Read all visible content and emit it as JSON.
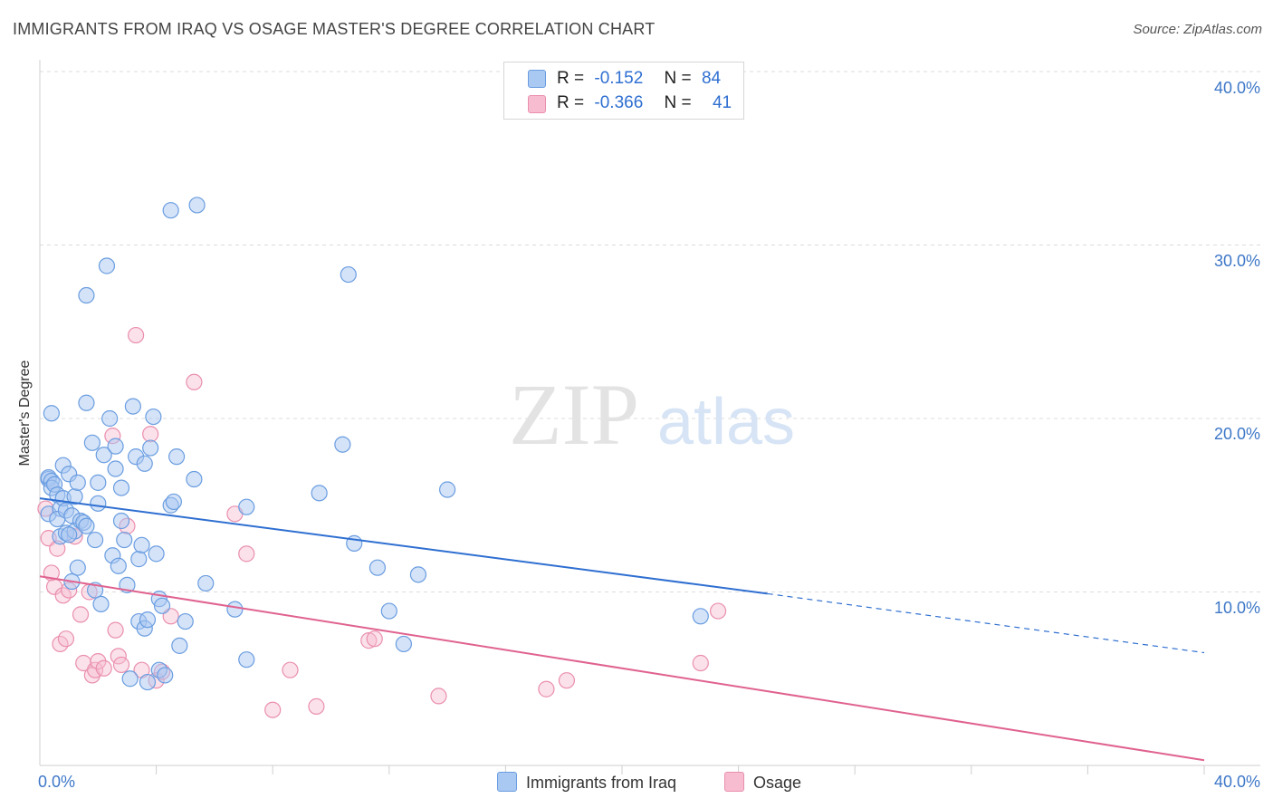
{
  "title": "IMMIGRANTS FROM IRAQ VS OSAGE MASTER'S DEGREE CORRELATION CHART",
  "source": "Source: ZipAtlas.com",
  "watermark": {
    "zip": "ZIP",
    "atlas": "atlas"
  },
  "colors": {
    "iraq_fill": "#a9c8f2",
    "iraq_stroke": "#6a9de0",
    "iraq_line": "#2f6fd1",
    "osage_fill": "#f7bcd0",
    "osage_stroke": "#ea8fae",
    "osage_line": "#e0628f",
    "axis_text": "#3d77c8",
    "grid": "#dcdcdc"
  },
  "legend": {
    "rows": [
      {
        "r_label": "R =",
        "r_value": "-0.152",
        "n_label": "N =",
        "n_value": "84"
      },
      {
        "r_label": "R =",
        "r_value": "-0.366",
        "n_label": "N =",
        "n_value": "41"
      }
    ]
  },
  "bottom_legend": {
    "iraq": "Immigrants from Iraq",
    "osage": "Osage"
  },
  "chart_data": {
    "type": "scatter",
    "title": "IMMIGRANTS FROM IRAQ VS OSAGE MASTER'S DEGREE CORRELATION CHART",
    "xlabel": "",
    "ylabel": "Master's Degree",
    "xlim": [
      0,
      40
    ],
    "ylim": [
      0,
      40
    ],
    "x_tick_labels": [
      "0.0%",
      "40.0%"
    ],
    "y_ticks": [
      10,
      20,
      30,
      40
    ],
    "y_tick_labels": [
      "10.0%",
      "20.0%",
      "30.0%",
      "40.0%"
    ],
    "series": [
      {
        "name": "Immigrants from Iraq",
        "r": -0.152,
        "n": 84,
        "trend": {
          "x0": 0,
          "y0": 15.4,
          "x1": 25,
          "y1": 9.9,
          "dash_x1": 40,
          "dash_y1": 6.5
        },
        "points": [
          [
            0.3,
            16.5
          ],
          [
            0.3,
            16.6
          ],
          [
            0.4,
            16.4
          ],
          [
            0.4,
            16.0
          ],
          [
            0.5,
            16.2
          ],
          [
            0.3,
            14.5
          ],
          [
            0.4,
            20.3
          ],
          [
            0.6,
            15.6
          ],
          [
            0.7,
            14.8
          ],
          [
            0.6,
            14.2
          ],
          [
            0.8,
            15.4
          ],
          [
            0.7,
            13.2
          ],
          [
            0.9,
            13.4
          ],
          [
            0.8,
            17.3
          ],
          [
            0.9,
            14.7
          ],
          [
            1.0,
            16.8
          ],
          [
            1.1,
            14.4
          ],
          [
            1.2,
            15.5
          ],
          [
            1.3,
            16.3
          ],
          [
            1.2,
            13.5
          ],
          [
            1.4,
            14.1
          ],
          [
            1.5,
            14.0
          ],
          [
            1.3,
            11.4
          ],
          [
            1.1,
            10.6
          ],
          [
            1.6,
            20.9
          ],
          [
            1.8,
            18.6
          ],
          [
            1.9,
            13.0
          ],
          [
            2.0,
            15.1
          ],
          [
            1.9,
            10.1
          ],
          [
            2.1,
            9.3
          ],
          [
            2.2,
            17.9
          ],
          [
            2.0,
            16.3
          ],
          [
            2.4,
            20.0
          ],
          [
            2.6,
            18.4
          ],
          [
            2.6,
            17.1
          ],
          [
            2.5,
            12.1
          ],
          [
            2.7,
            11.5
          ],
          [
            2.8,
            14.1
          ],
          [
            2.9,
            13.0
          ],
          [
            3.0,
            10.4
          ],
          [
            3.2,
            20.7
          ],
          [
            3.3,
            17.8
          ],
          [
            3.4,
            11.9
          ],
          [
            3.5,
            12.7
          ],
          [
            3.6,
            17.4
          ],
          [
            3.8,
            18.3
          ],
          [
            3.9,
            20.1
          ],
          [
            4.0,
            12.2
          ],
          [
            4.1,
            9.6
          ],
          [
            4.2,
            9.2
          ],
          [
            3.1,
            5.0
          ],
          [
            3.4,
            8.3
          ],
          [
            3.6,
            7.9
          ],
          [
            3.7,
            4.8
          ],
          [
            4.1,
            5.5
          ],
          [
            4.3,
            5.2
          ],
          [
            4.5,
            15.0
          ],
          [
            4.6,
            15.2
          ],
          [
            4.7,
            17.8
          ],
          [
            4.8,
            6.9
          ],
          [
            5.0,
            8.3
          ],
          [
            4.5,
            32.0
          ],
          [
            5.4,
            32.3
          ],
          [
            5.3,
            16.5
          ],
          [
            5.7,
            10.5
          ],
          [
            6.7,
            9.0
          ],
          [
            7.1,
            6.1
          ],
          [
            7.1,
            14.9
          ],
          [
            9.6,
            15.7
          ],
          [
            10.4,
            18.5
          ],
          [
            10.6,
            28.3
          ],
          [
            10.8,
            12.8
          ],
          [
            11.6,
            11.4
          ],
          [
            12.0,
            8.9
          ],
          [
            12.5,
            7.0
          ],
          [
            13.0,
            11.0
          ],
          [
            14.0,
            15.9
          ],
          [
            1.6,
            27.1
          ],
          [
            2.3,
            28.8
          ],
          [
            22.7,
            8.6
          ],
          [
            1.6,
            13.8
          ],
          [
            2.8,
            16.0
          ],
          [
            3.7,
            8.4
          ],
          [
            1.0,
            13.3
          ]
        ]
      },
      {
        "name": "Osage",
        "r": -0.366,
        "n": 41,
        "trend": {
          "x0": 0,
          "y0": 10.9,
          "x1": 40,
          "y1": 0.3
        },
        "points": [
          [
            0.2,
            14.8
          ],
          [
            0.3,
            13.1
          ],
          [
            0.4,
            11.1
          ],
          [
            0.5,
            10.3
          ],
          [
            0.6,
            12.5
          ],
          [
            0.7,
            7.0
          ],
          [
            0.8,
            9.8
          ],
          [
            0.9,
            7.3
          ],
          [
            1.0,
            10.1
          ],
          [
            1.2,
            13.2
          ],
          [
            1.4,
            8.7
          ],
          [
            1.5,
            5.9
          ],
          [
            1.7,
            10.0
          ],
          [
            1.8,
            5.2
          ],
          [
            1.9,
            5.5
          ],
          [
            2.0,
            6.0
          ],
          [
            2.2,
            5.6
          ],
          [
            2.5,
            19.0
          ],
          [
            2.6,
            7.8
          ],
          [
            2.7,
            6.3
          ],
          [
            2.8,
            5.8
          ],
          [
            3.0,
            13.8
          ],
          [
            3.3,
            24.8
          ],
          [
            3.5,
            5.5
          ],
          [
            3.8,
            19.1
          ],
          [
            4.0,
            4.9
          ],
          [
            4.2,
            5.4
          ],
          [
            4.5,
            8.6
          ],
          [
            5.3,
            22.1
          ],
          [
            6.7,
            14.5
          ],
          [
            7.1,
            12.2
          ],
          [
            8.0,
            3.2
          ],
          [
            8.6,
            5.5
          ],
          [
            9.5,
            3.4
          ],
          [
            11.3,
            7.2
          ],
          [
            11.5,
            7.3
          ],
          [
            13.7,
            4.0
          ],
          [
            17.4,
            4.4
          ],
          [
            18.1,
            4.9
          ],
          [
            22.7,
            5.9
          ],
          [
            23.3,
            8.9
          ]
        ]
      }
    ]
  }
}
